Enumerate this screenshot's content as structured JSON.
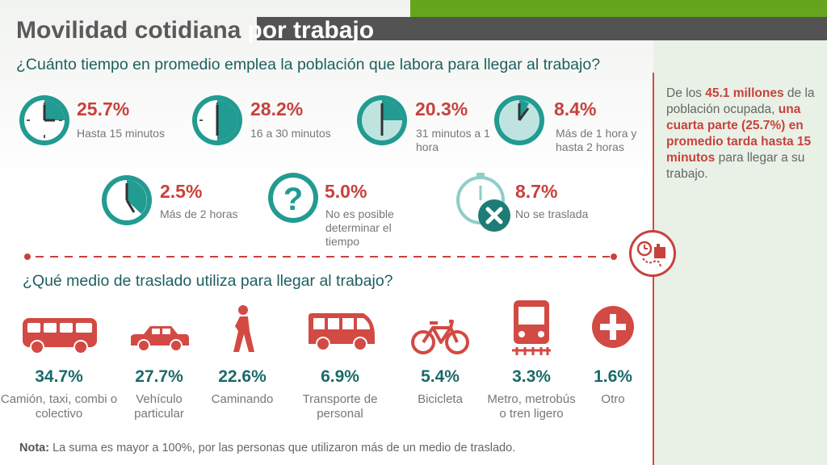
{
  "header": {
    "title_main": "Movilidad cotidiana",
    "title_highlight": "por trabajo"
  },
  "time_section": {
    "question": "¿Cuánto tiempo en promedio emplea la población que labora para llegar al trabajo?",
    "items": [
      {
        "percent": "25.7%",
        "label": "Hasta 15 minutos",
        "icon": "clock-icon"
      },
      {
        "percent": "28.2%",
        "label": "16 a 30 minutos",
        "icon": "clock-icon"
      },
      {
        "percent": "20.3%",
        "label": "31 minutos a 1 hora",
        "icon": "clock-icon"
      },
      {
        "percent": "8.4%",
        "label": "Más de 1 hora y hasta 2 horas",
        "icon": "clock-icon"
      },
      {
        "percent": "2.5%",
        "label": "Más de 2 horas",
        "icon": "clock-icon"
      },
      {
        "percent": "5.0%",
        "label": "No es posible determinar el tiempo",
        "icon": "question-icon"
      },
      {
        "percent": "8.7%",
        "label": "No se traslada",
        "icon": "stopwatch-cross-icon"
      }
    ]
  },
  "mode_section": {
    "question": "¿Qué medio de traslado utiliza para llegar al trabajo?",
    "items": [
      {
        "percent": "34.7%",
        "label": "Camión, taxi, combi o colectivo",
        "icon": "bus-icon"
      },
      {
        "percent": "27.7%",
        "label": "Vehículo particular",
        "icon": "car-icon"
      },
      {
        "percent": "22.6%",
        "label": "Caminando",
        "icon": "walking-person-icon"
      },
      {
        "percent": "6.9%",
        "label": "Transporte de personal",
        "icon": "shuttle-bus-icon"
      },
      {
        "percent": "5.4%",
        "label": "Bicicleta",
        "icon": "bicycle-icon"
      },
      {
        "percent": "3.3%",
        "label": "Metro, metrobús o tren ligero",
        "icon": "metro-train-icon"
      },
      {
        "percent": "1.6%",
        "label": "Otro",
        "icon": "plus-icon"
      }
    ]
  },
  "sidebar": {
    "t1": "De los ",
    "h1": "45.1 millones",
    "t2": " de la población ocupada, ",
    "h2": "una cuarta parte (25.7%) en promedio tarda hasta 15 minutos",
    "t3": " para llegar a su trabajo."
  },
  "note": {
    "label": "Nota:",
    "text": " La suma es mayor a 100%, por las personas que utilizaron más de un medio de traslado."
  },
  "colors": {
    "accent_red": "#c8413c",
    "teal": "#1b6a6a",
    "clock_teal": "#229b92",
    "header_green": "#64a51d",
    "header_dark": "#535353"
  }
}
